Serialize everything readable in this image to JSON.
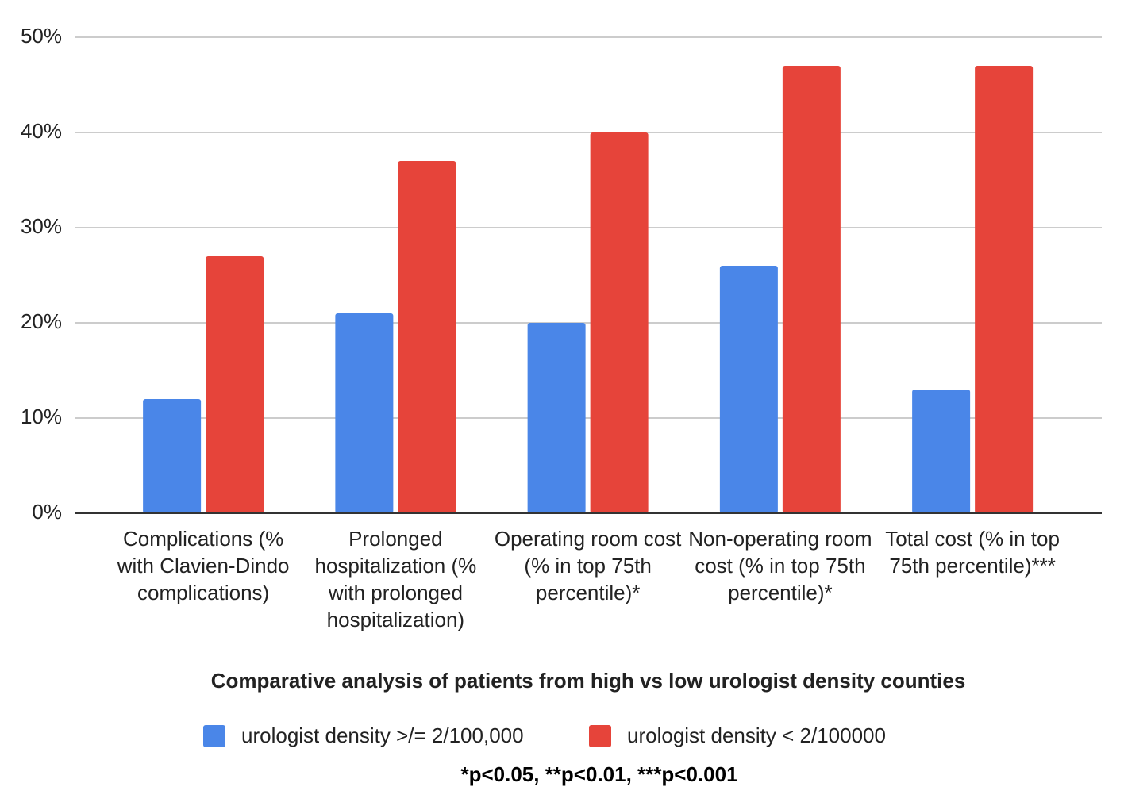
{
  "chart_data": {
    "type": "bar",
    "x_title": "Comparative analysis of patients from high vs low urologist density counties",
    "footnote": "*p<0.05, **p<0.01, ***p<0.001",
    "categories": [
      "Complications (% with Clavien-Dindo complications)",
      "Prolonged hospitalization (% with prolonged hospitalization)",
      "Operating room cost (% in top 75th percentile)*",
      "Non-operating room cost (% in top 75th percentile)*",
      "Total cost (% in top 75th percentile)***"
    ],
    "series": [
      {
        "name": "urologist density >/= 2/100,000",
        "color": "#4a86e8",
        "values": [
          12,
          21,
          20,
          26,
          13
        ]
      },
      {
        "name": "urologist density < 2/100000",
        "color": "#e6443a",
        "values": [
          27,
          37,
          40,
          47,
          47
        ]
      }
    ],
    "ylim": [
      0,
      50
    ],
    "yticks": [
      {
        "value": 0,
        "label": "0%"
      },
      {
        "value": 10,
        "label": "10%"
      },
      {
        "value": 20,
        "label": "20%"
      },
      {
        "value": 30,
        "label": "30%"
      },
      {
        "value": 40,
        "label": "40%"
      },
      {
        "value": 50,
        "label": "50%"
      }
    ],
    "grid": true
  }
}
